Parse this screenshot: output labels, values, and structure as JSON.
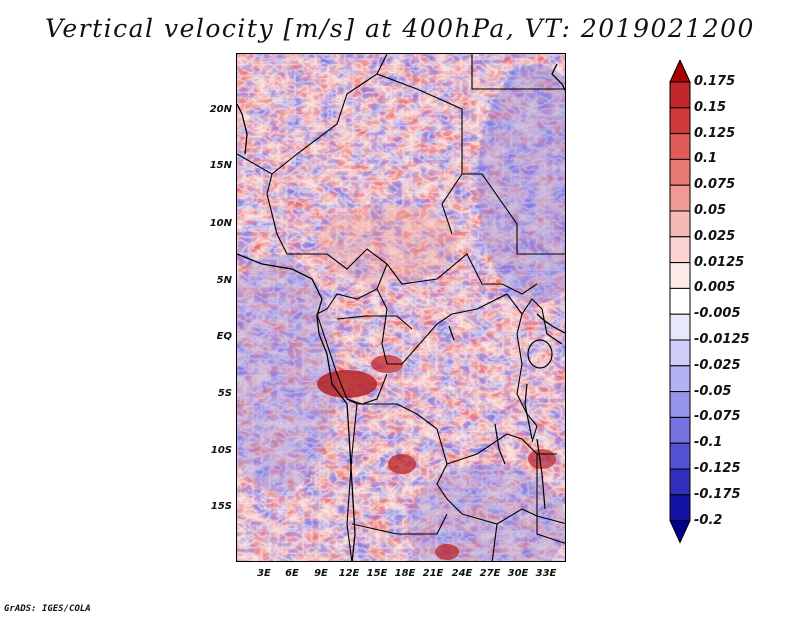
{
  "title": "Vertical velocity [m/s] at 400hPa, VT: 2019021200",
  "credit": "GrADS: IGES/COLA",
  "y_ticks": [
    "20N",
    "15N",
    "10N",
    "5N",
    "EQ",
    "5S",
    "10S",
    "15S"
  ],
  "x_ticks": [
    "3E",
    "6E",
    "9E",
    "12E",
    "15E",
    "18E",
    "21E",
    "24E",
    "27E",
    "30E",
    "33E"
  ],
  "colorbar": {
    "labels": [
      "0.175",
      "0.15",
      "0.125",
      "0.1",
      "0.075",
      "0.05",
      "0.025",
      "0.0125",
      "0.005",
      "-0.005",
      "-0.0125",
      "-0.025",
      "-0.05",
      "-0.075",
      "-0.1",
      "-0.125",
      "-0.175",
      "-0.2"
    ],
    "colors": [
      "#a80000",
      "#c0262a",
      "#d23a3a",
      "#e05a56",
      "#e87a74",
      "#ef9a94",
      "#f5b9b4",
      "#f9d4d0",
      "#fcebe8",
      "#ffffff",
      "#e8e8fc",
      "#cfcff8",
      "#b2b2f2",
      "#9494ea",
      "#7474e0",
      "#5252d2",
      "#3030bc",
      "#1414a4",
      "#00008c"
    ]
  }
}
